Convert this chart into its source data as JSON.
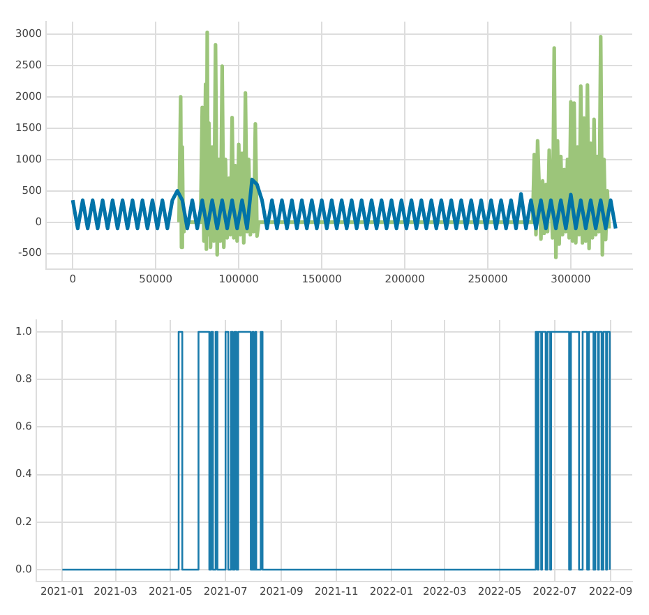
{
  "chart_data": [
    {
      "type": "line",
      "xlim": [
        -16000,
        337000
      ],
      "ylim": [
        -750,
        3200
      ],
      "xticks": [
        0,
        50000,
        100000,
        150000,
        200000,
        250000,
        300000
      ],
      "yticks": [
        -500,
        0,
        500,
        1000,
        1500,
        2000,
        2500,
        3000
      ],
      "grid": true,
      "legend": false,
      "marker": "none",
      "series": [
        {
          "color": "#0173a8",
          "x": [
            0,
            3000,
            6000,
            9000,
            12000,
            15000,
            18000,
            21000,
            24000,
            27000,
            30000,
            33000,
            36000,
            39000,
            42000,
            45000,
            48000,
            51000,
            54000,
            57000,
            60000,
            63000,
            66000,
            69000,
            72000,
            75000,
            78000,
            81000,
            84000,
            87000,
            90000,
            93000,
            96000,
            99000,
            102000,
            105000,
            108000,
            111000,
            114000,
            117000,
            120000,
            123000,
            126000,
            129000,
            132000,
            135000,
            138000,
            141000,
            144000,
            147000,
            150000,
            153000,
            156000,
            159000,
            162000,
            165000,
            168000,
            171000,
            174000,
            177000,
            180000,
            183000,
            186000,
            189000,
            192000,
            195000,
            198000,
            201000,
            204000,
            207000,
            210000,
            213000,
            216000,
            219000,
            222000,
            225000,
            228000,
            231000,
            234000,
            237000,
            240000,
            243000,
            246000,
            249000,
            252000,
            255000,
            258000,
            261000,
            264000,
            267000,
            270000,
            273000,
            276000,
            279000,
            282000,
            285000,
            288000,
            291000,
            294000,
            297000,
            300000,
            303000,
            306000,
            309000,
            312000,
            315000,
            318000,
            321000,
            324000,
            327000
          ],
          "values": [
            350,
            -100,
            350,
            -100,
            350,
            -100,
            350,
            -100,
            350,
            -100,
            350,
            -100,
            350,
            -100,
            350,
            -100,
            350,
            -100,
            350,
            -100,
            350,
            500,
            350,
            -100,
            350,
            -100,
            350,
            -100,
            350,
            -100,
            350,
            -100,
            350,
            -100,
            350,
            -100,
            680,
            600,
            350,
            -100,
            350,
            -100,
            350,
            -100,
            350,
            -100,
            350,
            -100,
            350,
            -100,
            350,
            -100,
            350,
            -100,
            350,
            -100,
            350,
            -100,
            350,
            -100,
            350,
            -100,
            350,
            -100,
            350,
            -100,
            350,
            -100,
            350,
            -100,
            350,
            -100,
            350,
            -100,
            350,
            -100,
            350,
            -100,
            350,
            -100,
            350,
            -100,
            350,
            -100,
            350,
            -100,
            350,
            -100,
            350,
            -100,
            450,
            -100,
            350,
            -100,
            350,
            -100,
            350,
            -100,
            350,
            -100,
            440,
            -100,
            350,
            -100,
            350,
            -100,
            350,
            -100,
            350,
            -100
          ]
        },
        {
          "color": "#9cc57a",
          "x": [
            64000,
            65000,
            65500,
            66000,
            66500,
            67000,
            77000,
            78000,
            79000,
            80000,
            80500,
            81000,
            81500,
            82000,
            83000,
            84000,
            85000,
            86000,
            87000,
            88000,
            89000,
            90000,
            91000,
            92000,
            93000,
            94000,
            95000,
            96000,
            97000,
            98000,
            99000,
            100000,
            101000,
            102000,
            103000,
            104000,
            105000,
            106000,
            107000,
            108000,
            109000,
            110000,
            111000,
            112000,
            277000,
            278000,
            279000,
            280000,
            282000,
            283000,
            284000,
            285000,
            286000,
            287000,
            289000,
            290000,
            291000,
            292000,
            293000,
            294000,
            295000,
            296000,
            297000,
            298000,
            299000,
            300000,
            301000,
            302000,
            303000,
            304000,
            305000,
            306000,
            307000,
            308000,
            309000,
            310000,
            311000,
            312000,
            313000,
            314000,
            315000,
            316000,
            317000,
            318000,
            319000,
            320000,
            321000,
            322000,
            323000
          ],
          "values": [
            0,
            2000,
            -400,
            1200,
            -150,
            0,
            0,
            1830,
            -300,
            2200,
            -430,
            3030,
            -200,
            1580,
            -400,
            1200,
            -300,
            2830,
            -520,
            1000,
            -300,
            2490,
            -400,
            1000,
            -250,
            700,
            -200,
            1670,
            -250,
            900,
            -300,
            1240,
            -200,
            1100,
            -330,
            2060,
            -150,
            1000,
            -200,
            600,
            -150,
            1570,
            -220,
            0,
            0,
            1080,
            -200,
            1300,
            -270,
            660,
            -180,
            600,
            -150,
            1150,
            -250,
            2780,
            -560,
            1300,
            -350,
            1050,
            -200,
            840,
            -150,
            1000,
            -250,
            1920,
            -300,
            1900,
            -330,
            1200,
            -200,
            2170,
            -330,
            1660,
            -300,
            2190,
            -420,
            1260,
            -250,
            1640,
            -200,
            1050,
            -150,
            2960,
            -520,
            1000,
            -280,
            500,
            -100
          ]
        }
      ]
    },
    {
      "type": "step",
      "xlim": [
        "2020-12-03",
        "2022-09-25"
      ],
      "ylim": [
        -0.05,
        1.05
      ],
      "xticks": [
        "2021-01",
        "2021-03",
        "2021-05",
        "2021-07",
        "2021-09",
        "2021-11",
        "2022-01",
        "2022-03",
        "2022-05",
        "2022-07",
        "2022-09"
      ],
      "yticks": [
        {
          "value": 0,
          "label": "0.0"
        },
        {
          "value": 0.2,
          "label": "0.2"
        },
        {
          "value": 0.4,
          "label": "0.4"
        },
        {
          "value": 0.6,
          "label": "0.6"
        },
        {
          "value": 0.8,
          "label": "0.8"
        },
        {
          "value": 1,
          "label": "1.0"
        }
      ],
      "grid": true,
      "legend": false,
      "marker": "none",
      "series": [
        {
          "color": "#1a7bab",
          "x": [
            "2021-01-01",
            "2021-05-10",
            "2021-05-14",
            "2021-06-01",
            "2021-06-13",
            "2021-06-15",
            "2021-06-17",
            "2021-06-20",
            "2021-06-22",
            "2021-07-01",
            "2021-07-04",
            "2021-07-07",
            "2021-07-09",
            "2021-07-11",
            "2021-07-13",
            "2021-07-15",
            "2021-07-29",
            "2021-07-31",
            "2021-08-01",
            "2021-08-03",
            "2021-08-04",
            "2021-08-09",
            "2021-08-11",
            "2021-08-15",
            "2022-06-10",
            "2022-06-12",
            "2022-06-13",
            "2022-06-16",
            "2022-06-17",
            "2022-06-21",
            "2022-06-23",
            "2022-06-26",
            "2022-06-27",
            "2022-07-17",
            "2022-07-19",
            "2022-07-28",
            "2022-08-01",
            "2022-08-06",
            "2022-08-08",
            "2022-08-13",
            "2022-08-15",
            "2022-08-18",
            "2022-08-19",
            "2022-08-22",
            "2022-08-24",
            "2022-08-27",
            "2022-08-28",
            "2022-08-31"
          ],
          "values": [
            0,
            1,
            0,
            1,
            0,
            1,
            0,
            1,
            0,
            1,
            0,
            1,
            0,
            1,
            0,
            1,
            0,
            1,
            0,
            1,
            0,
            1,
            0,
            0,
            1,
            0,
            1,
            0,
            1,
            0,
            1,
            0,
            1,
            0,
            1,
            0,
            1,
            0,
            1,
            0,
            1,
            0,
            1,
            0,
            1,
            0,
            1,
            0
          ]
        }
      ]
    }
  ]
}
